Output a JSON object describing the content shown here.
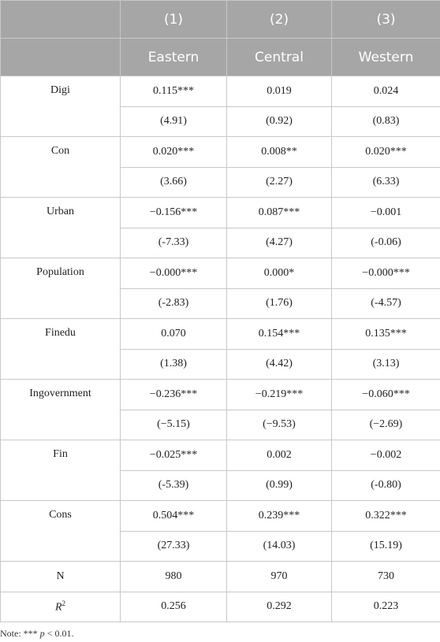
{
  "table": {
    "header_row1": [
      "(1)",
      "(2)",
      "(3)"
    ],
    "header_row2": [
      "Eastern",
      "Central",
      "Western"
    ],
    "rows": [
      {
        "label": "Digi",
        "coef": [
          "0.115***",
          "0.019",
          "0.024"
        ],
        "t": [
          "(4.91)",
          "(0.92)",
          "(0.83)"
        ]
      },
      {
        "label": "Con",
        "coef": [
          "0.020***",
          "0.008**",
          "0.020***"
        ],
        "t": [
          "(3.66)",
          "(2.27)",
          "(6.33)"
        ]
      },
      {
        "label": "Urban",
        "coef": [
          "−0.156***",
          "0.087***",
          "−0.001"
        ],
        "t": [
          "(-7.33)",
          "(4.27)",
          "(-0.06)"
        ]
      },
      {
        "label": "Population",
        "coef": [
          "−0.000***",
          "0.000*",
          "−0.000***"
        ],
        "t": [
          "(-2.83)",
          "(1.76)",
          "(-4.57)"
        ]
      },
      {
        "label": "Finedu",
        "coef": [
          "0.070",
          "0.154***",
          "0.135***"
        ],
        "t": [
          "(1.38)",
          "(4.42)",
          "(3.13)"
        ]
      },
      {
        "label": "Ingovernment",
        "coef": [
          "−0.236***",
          "−0.219***",
          "−0.060***"
        ],
        "t": [
          "(−5.15)",
          "(−9.53)",
          "(−2.69)"
        ]
      },
      {
        "label": "Fin",
        "coef": [
          "−0.025***",
          "0.002",
          "−0.002"
        ],
        "t": [
          "(-5.39)",
          "(0.99)",
          "(-0.80)"
        ]
      },
      {
        "label": "Cons",
        "coef": [
          "0.504***",
          "0.239***",
          "0.322***"
        ],
        "t": [
          "(27.33)",
          "(14.03)",
          "(15.19)"
        ]
      }
    ],
    "n_row": {
      "label": "N",
      "values": [
        "980",
        "970",
        "730"
      ]
    },
    "r2_row": {
      "label": "R",
      "sup": "2",
      "values": [
        "0.256",
        "0.292",
        "0.223"
      ]
    }
  },
  "note": {
    "prefix": "Note: ***",
    "var": "p",
    "suffix": "< 0.01."
  }
}
